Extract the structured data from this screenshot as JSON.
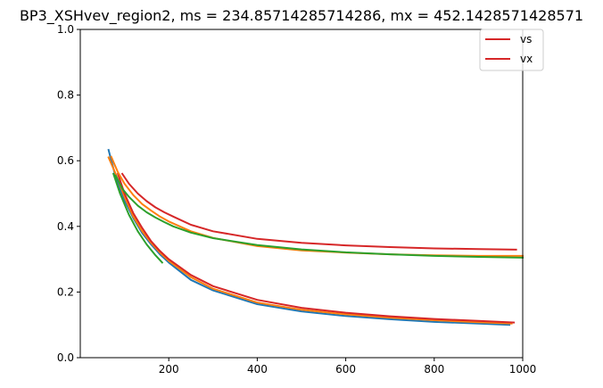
{
  "chart_data": {
    "type": "line",
    "title": "BP3_XSHvev_region2, ms = 234.85714285714286, mx = 452.1428571428571",
    "xlabel": "",
    "ylabel": "",
    "xlim": [
      0,
      1000
    ],
    "ylim": [
      0,
      1.0
    ],
    "xticks": [
      200,
      400,
      600,
      800,
      1000
    ],
    "yticks": [
      0.0,
      0.2,
      0.4,
      0.6,
      0.8,
      1.0
    ],
    "grid": false,
    "legend": {
      "placement": "top-right",
      "entries": [
        {
          "label": "vs",
          "color": "#d62728"
        },
        {
          "label": "vx",
          "color": "#d62728"
        }
      ]
    },
    "series": [
      {
        "color": "#1f77b4",
        "x": [
          64,
          80,
          100,
          120,
          140,
          160,
          180,
          200,
          250,
          300,
          400,
          500,
          600,
          700,
          800,
          900,
          970
        ],
        "y": [
          0.633,
          0.55,
          0.48,
          0.425,
          0.38,
          0.345,
          0.315,
          0.29,
          0.237,
          0.205,
          0.163,
          0.141,
          0.127,
          0.117,
          0.109,
          0.104,
          0.1
        ]
      },
      {
        "color": "#ff7f0e",
        "x": [
          64,
          80,
          100,
          120,
          140,
          160,
          180,
          200,
          250,
          300,
          400,
          500,
          600,
          700,
          800,
          900,
          975
        ],
        "y": [
          0.61,
          0.56,
          0.49,
          0.43,
          0.385,
          0.35,
          0.32,
          0.295,
          0.245,
          0.21,
          0.168,
          0.146,
          0.132,
          0.122,
          0.114,
          0.108,
          0.104
        ]
      },
      {
        "color": "#2ca02c",
        "x": [
          75,
          90,
          110,
          130,
          150,
          170,
          185
        ],
        "y": [
          0.56,
          0.5,
          0.435,
          0.385,
          0.345,
          0.312,
          0.29
        ]
      },
      {
        "color": "#d62728",
        "x": [
          85,
          100,
          120,
          140,
          160,
          180,
          200,
          250,
          300,
          400,
          500,
          600,
          700,
          800,
          900,
          980
        ],
        "y": [
          0.56,
          0.5,
          0.44,
          0.395,
          0.355,
          0.325,
          0.3,
          0.252,
          0.218,
          0.176,
          0.152,
          0.137,
          0.126,
          0.118,
          0.112,
          0.107
        ]
      },
      {
        "color": "#ff7f0e",
        "x": [
          70,
          85,
          100,
          120,
          140,
          160,
          180,
          200,
          250,
          300,
          400,
          500,
          600,
          700,
          800,
          900,
          1000
        ],
        "y": [
          0.612,
          0.565,
          0.53,
          0.495,
          0.468,
          0.448,
          0.43,
          0.415,
          0.385,
          0.365,
          0.34,
          0.327,
          0.32,
          0.315,
          0.312,
          0.31,
          0.31
        ]
      },
      {
        "color": "#2ca02c",
        "x": [
          80,
          95,
          110,
          130,
          150,
          170,
          190,
          210,
          250,
          300,
          400,
          500,
          600,
          700,
          800,
          900,
          1000
        ],
        "y": [
          0.555,
          0.515,
          0.49,
          0.463,
          0.443,
          0.427,
          0.413,
          0.4,
          0.381,
          0.364,
          0.343,
          0.33,
          0.321,
          0.315,
          0.31,
          0.307,
          0.305
        ]
      },
      {
        "color": "#d62728",
        "x": [
          95,
          110,
          130,
          150,
          170,
          190,
          210,
          250,
          300,
          400,
          500,
          600,
          700,
          800,
          900,
          985
        ],
        "y": [
          0.56,
          0.53,
          0.5,
          0.477,
          0.458,
          0.443,
          0.43,
          0.405,
          0.385,
          0.362,
          0.35,
          0.342,
          0.337,
          0.333,
          0.331,
          0.329
        ]
      }
    ]
  }
}
